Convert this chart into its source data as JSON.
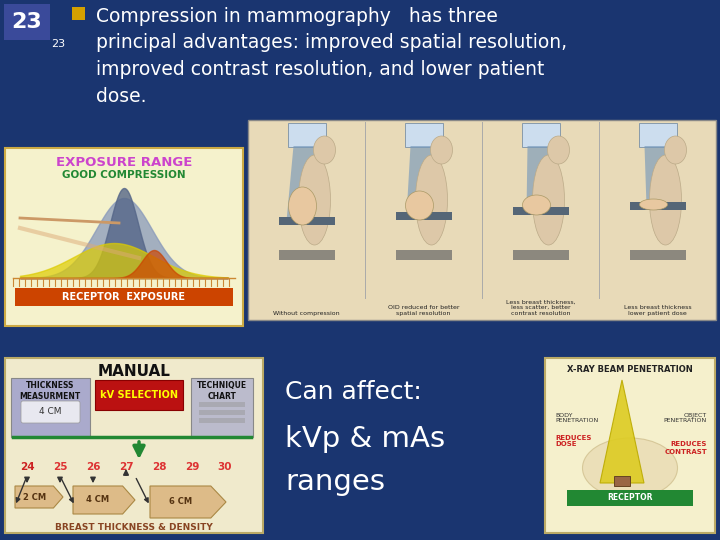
{
  "background_color": "#1a3570",
  "slide_number": "23",
  "slide_number_sub": "23",
  "slide_number_bg": "#3a4a9a",
  "bullet_color": "#d4a000",
  "title_text": "Compression in mammography   has three\nprincipal advantages: improved spatial resolution,\nimproved contrast resolution, and lower patient\ndose.",
  "title_color": "#ffffff",
  "title_fontsize": 13.5,
  "can_affect_text": "Can affect:",
  "kvp_text": "kVp & mAs\nranges",
  "can_affect_color": "#ffffff",
  "can_affect_fontsize": 18
}
